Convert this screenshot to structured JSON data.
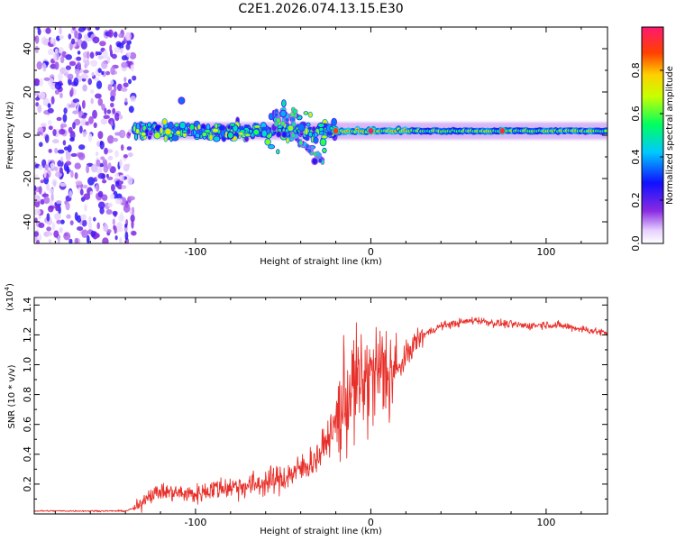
{
  "title": "C2E1.2026.074.13.15.E30",
  "chart_data": [
    {
      "type": "heatmap",
      "name": "spectrogram",
      "xlabel": "Height of straight line (km)",
      "ylabel": "Frequency (Hz)",
      "xlim": [
        -192,
        135
      ],
      "ylim": [
        -50,
        50
      ],
      "xticks": [
        -100,
        0,
        100
      ],
      "xtick_labels": [
        "-100",
        "0",
        "100"
      ],
      "yticks": [
        -40,
        -20,
        0,
        20,
        40
      ],
      "ytick_labels": [
        "-40",
        "-20",
        "0",
        "20",
        "40"
      ],
      "noise_region_x": [
        -192,
        -135
      ],
      "signal_band": {
        "center_hz": 2,
        "x_start": -135,
        "x_end": 135
      },
      "features": [
        {
          "x": -108,
          "y": 16,
          "value": 0.35
        },
        {
          "x": -50,
          "y": 10,
          "value": 0.4
        },
        {
          "x": -32,
          "y": -12,
          "value": 0.25
        },
        {
          "x": -80,
          "y": 0,
          "value": 0.5
        },
        {
          "x": -20,
          "y": 2,
          "value": 0.9
        },
        {
          "x": 0,
          "y": 2,
          "value": 1.0
        },
        {
          "x": 75,
          "y": 2,
          "value": 0.95
        }
      ],
      "colorbar": {
        "label": "Normalized spectral amplitude",
        "range": [
          0,
          1
        ],
        "ticks": [
          0.0,
          0.2,
          0.4,
          0.6,
          0.8
        ],
        "tick_labels": [
          "0.0",
          "0.2",
          "0.4",
          "0.6",
          "0.8"
        ]
      }
    },
    {
      "type": "line",
      "name": "snr",
      "xlabel": "Height of straight line (km)",
      "ylabel": "SNR (10 * v/v)",
      "multiplier_label": "(x10",
      "multiplier_exp": "4",
      "multiplier_close": ")",
      "xlim": [
        -192,
        135
      ],
      "ylim": [
        0,
        1.45
      ],
      "xticks": [
        -100,
        0,
        100
      ],
      "xtick_labels": [
        "-100",
        "0",
        "100"
      ],
      "yticks": [
        0.2,
        0.4,
        0.6,
        0.8,
        1.0,
        1.2,
        1.4
      ],
      "ytick_labels": [
        "0.2",
        "0.4",
        "0.6",
        "0.8",
        "1.0",
        "1.2",
        "1.4"
      ],
      "color": "#e8302a",
      "series": [
        {
          "name": "SNR",
          "x": [
            -192,
            -140,
            -132,
            -128,
            -120,
            -110,
            -100,
            -90,
            -80,
            -70,
            -60,
            -50,
            -40,
            -30,
            -25,
            -20,
            -15,
            -10,
            -5,
            0,
            5,
            10,
            15,
            20,
            25,
            30,
            40,
            50,
            60,
            70,
            80,
            90,
            100,
            110,
            120,
            135
          ],
          "y": [
            0.02,
            0.02,
            0.05,
            0.12,
            0.15,
            0.14,
            0.13,
            0.17,
            0.18,
            0.19,
            0.21,
            0.24,
            0.3,
            0.38,
            0.5,
            0.6,
            0.75,
            0.85,
            0.88,
            0.9,
            0.95,
            0.95,
            0.95,
            1.05,
            1.15,
            1.2,
            1.26,
            1.28,
            1.3,
            1.28,
            1.27,
            1.26,
            1.27,
            1.26,
            1.24,
            1.21
          ]
        }
      ]
    }
  ]
}
